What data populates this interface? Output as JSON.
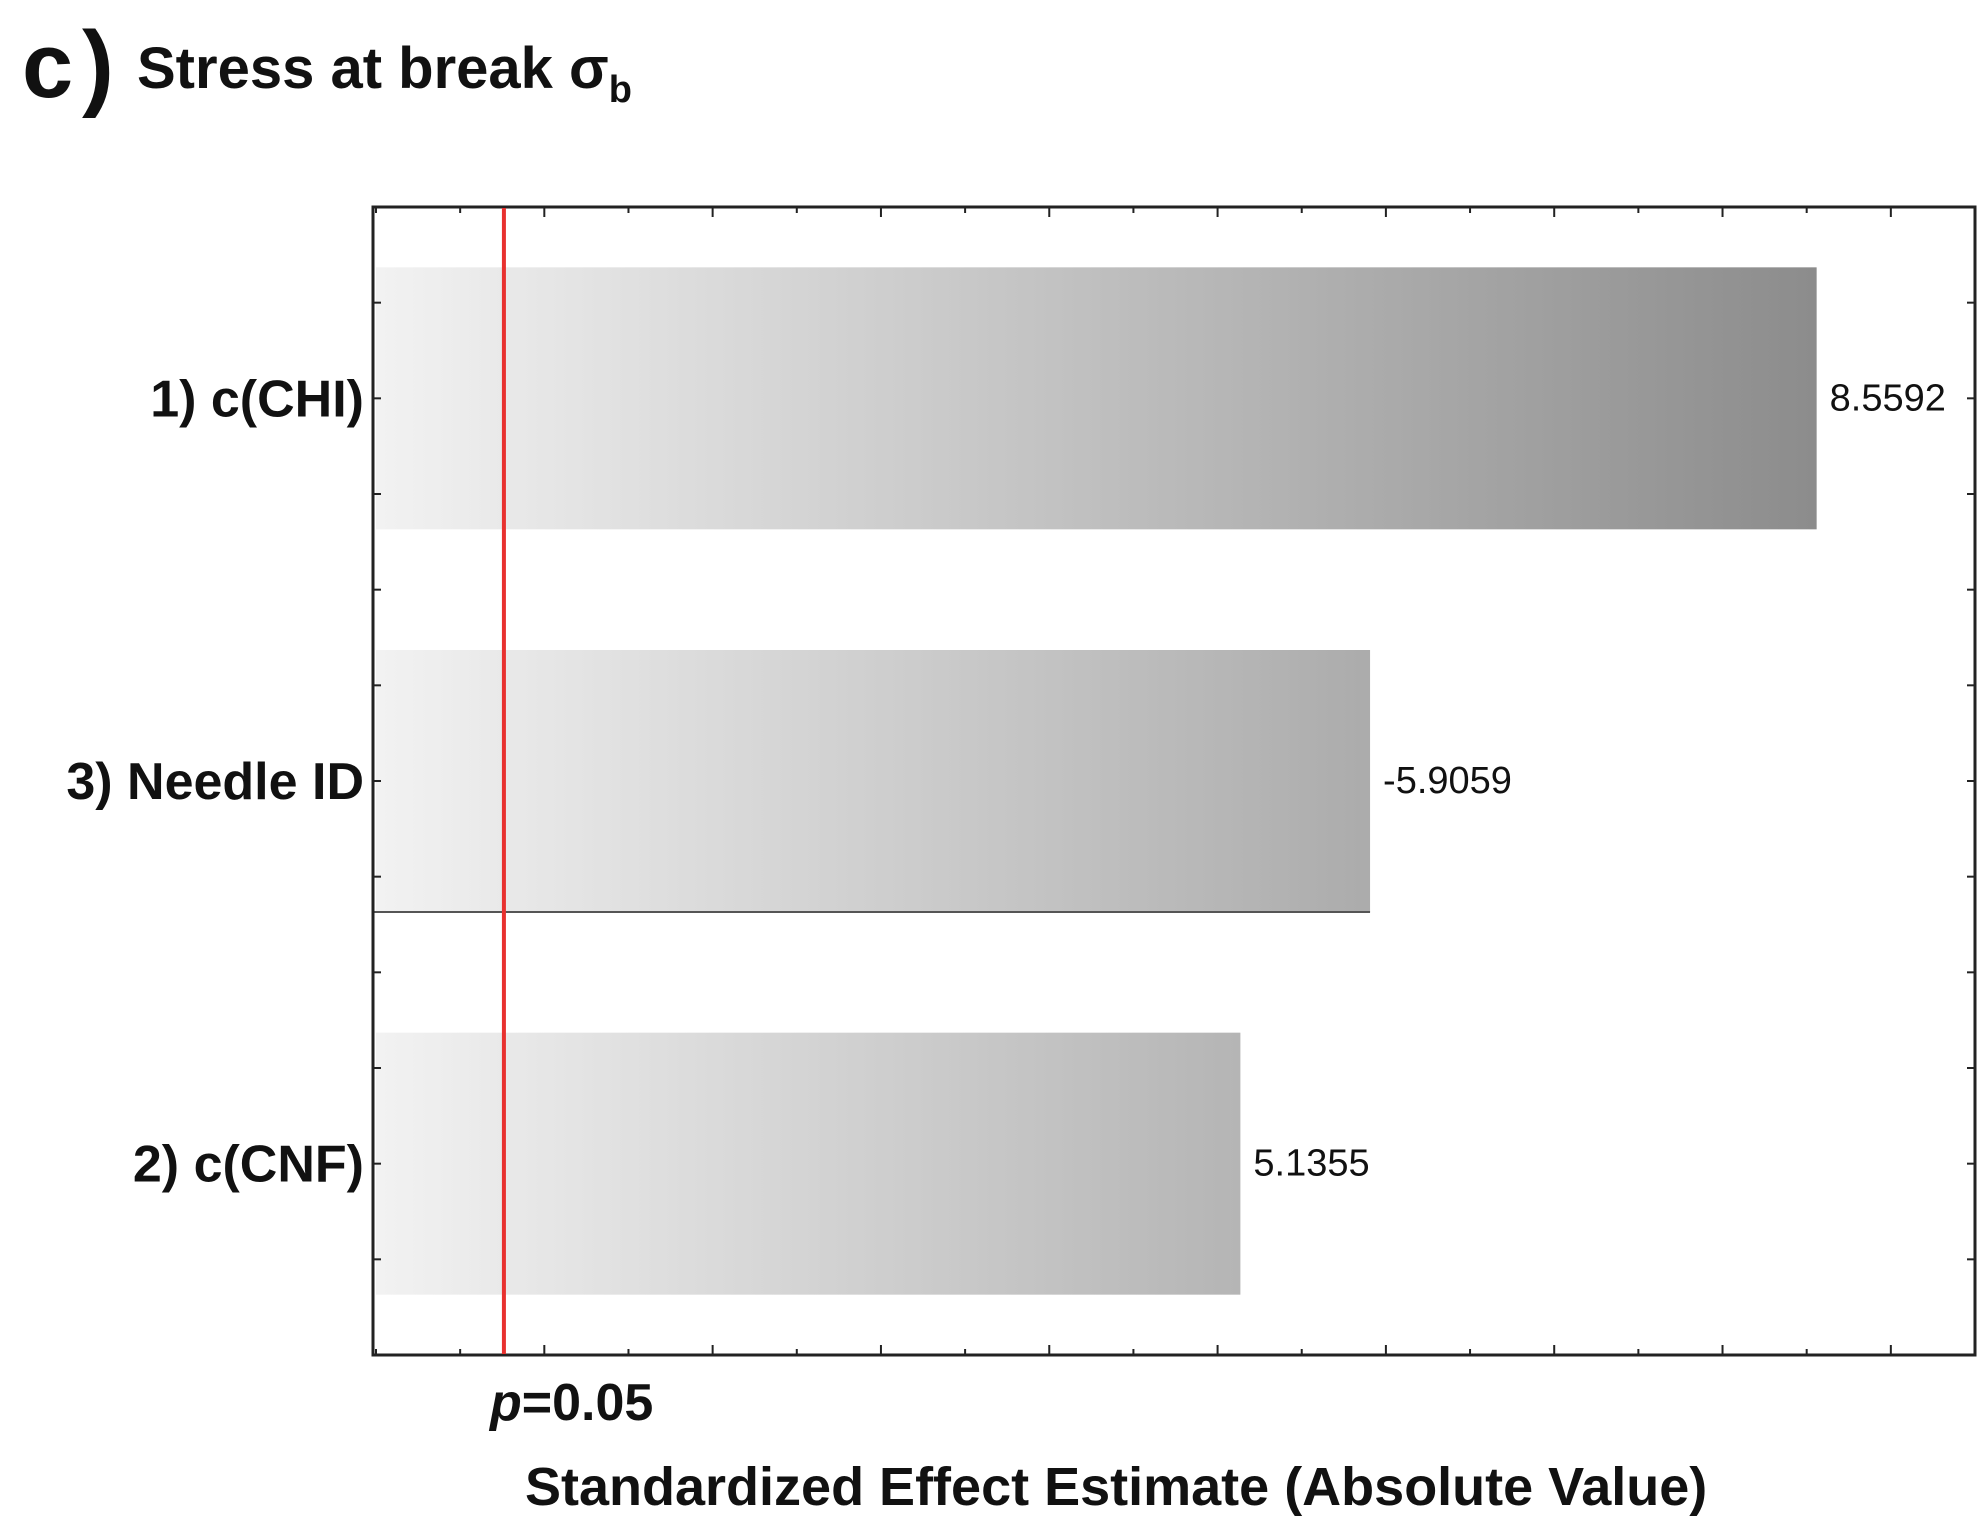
{
  "panel": {
    "letter": "c",
    "paren": ")"
  },
  "chart_data": {
    "type": "bar",
    "orientation": "horizontal",
    "title": "Stress at break",
    "title_symbol": "σ",
    "title_subscript": "b",
    "categories": [
      "1) c(CHI)",
      "3) Needle ID",
      "2) c(CNF)"
    ],
    "values": [
      8.5592,
      5.9059,
      5.1355
    ],
    "value_labels": [
      "8.5592",
      "-5.9059",
      "5.1355"
    ],
    "xlabel": "Standardized Effect Estimate (Absolute Value)",
    "xlim": [
      0,
      9.5
    ],
    "significance_line": {
      "value": 0.76,
      "label_italic": "p",
      "label_rest": "=0.05",
      "color": "#e8312f"
    },
    "bar_color_light": "#f2f2f2",
    "bar_color_dark": "#8c8c8c",
    "grid": false
  }
}
